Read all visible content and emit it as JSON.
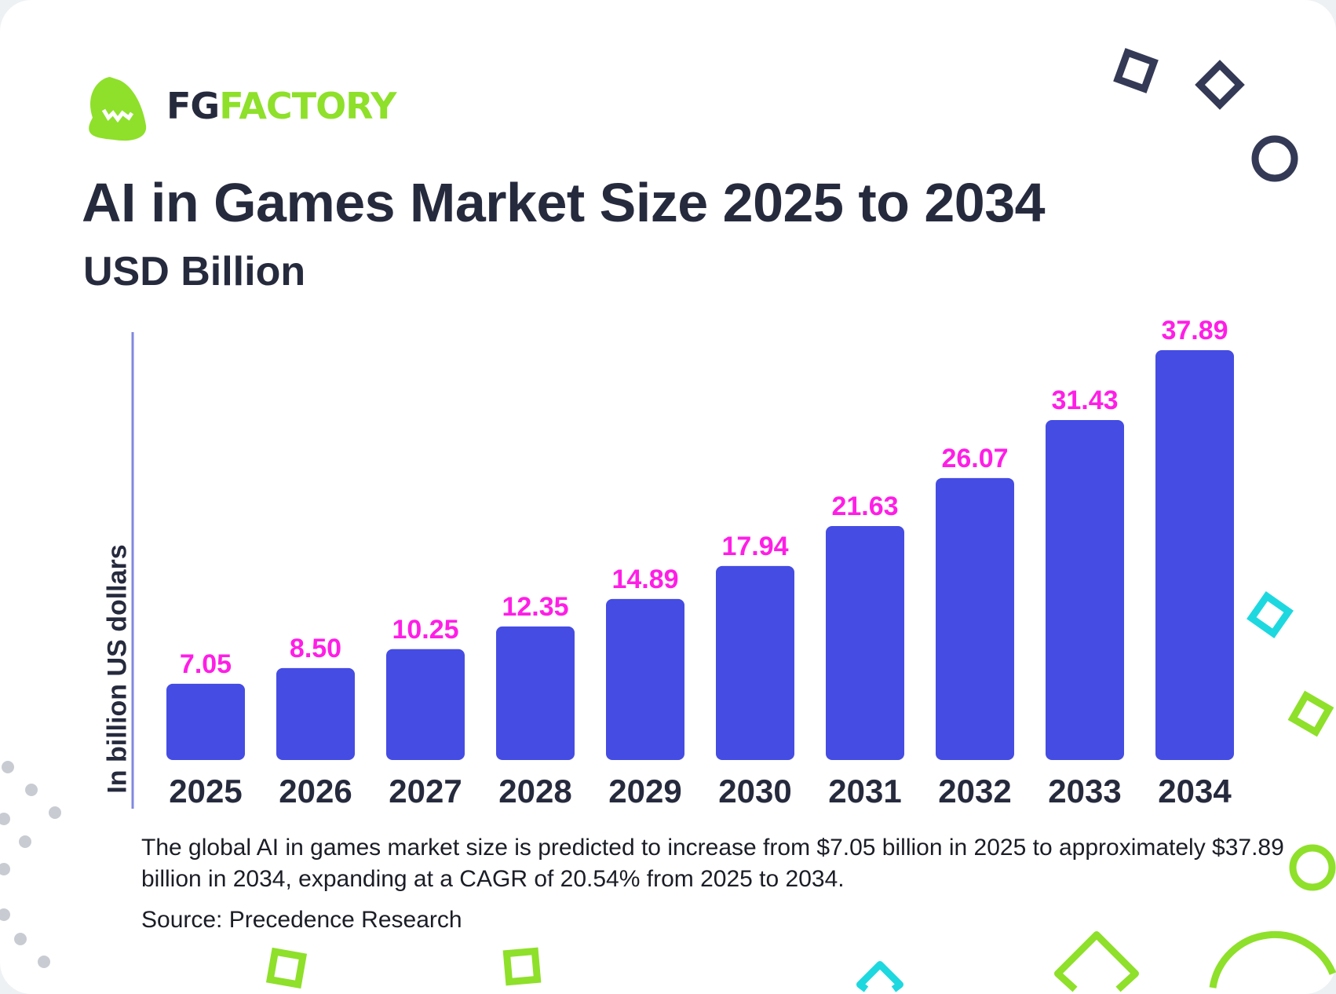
{
  "brand": {
    "name_dark": "FG",
    "name_green": "FACTORY",
    "logo": "green-monster-logo"
  },
  "title": "AI in Games Market Size 2025 to 2034",
  "subtitle": "USD Billion",
  "description": "The global AI in games market size is predicted to increase from $7.05 billion in 2025 to approximately $37.89 billion in 2034, expanding at a CAGR of 20.54% from 2025 to 2034.",
  "source": "Source: Precedence Research",
  "colors": {
    "bar": "#454ce3",
    "value_label": "#ff1ee6",
    "text": "#262a3d",
    "accent_green": "#8ee02a",
    "accent_cyan": "#1ed8e0"
  },
  "chart_data": {
    "type": "bar",
    "title": "AI in Games Market Size 2025 to 2034",
    "subtitle": "USD Billion",
    "xlabel": "",
    "ylabel": "In billion US dollars",
    "categories": [
      "2025",
      "2026",
      "2027",
      "2028",
      "2029",
      "2030",
      "2031",
      "2032",
      "2033",
      "2034"
    ],
    "values": [
      7.05,
      8.5,
      10.25,
      12.35,
      14.89,
      17.94,
      21.63,
      26.07,
      31.43,
      37.89
    ],
    "value_labels": [
      "7.05",
      "8.50",
      "10.25",
      "12.35",
      "14.89",
      "17.94",
      "21.63",
      "26.07",
      "31.43",
      "37.89"
    ],
    "ylim": [
      0,
      40
    ],
    "grid": false,
    "legend": "none"
  }
}
